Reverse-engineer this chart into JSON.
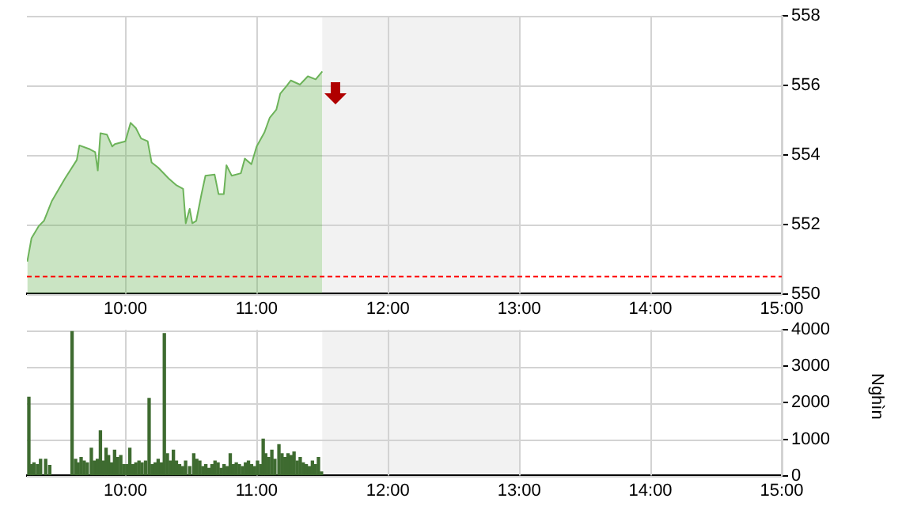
{
  "chart_data": [
    {
      "type": "area",
      "color": "#6db35a",
      "x": [
        9.253,
        9.285,
        9.34,
        9.38,
        9.44,
        9.54,
        9.63,
        9.65,
        9.73,
        9.77,
        9.79,
        9.81,
        9.86,
        9.9,
        9.92,
        10.0,
        10.04,
        10.08,
        10.12,
        10.17,
        10.2,
        10.25,
        10.33,
        10.39,
        10.44,
        10.46,
        10.49,
        10.51,
        10.54,
        10.58,
        10.61,
        10.68,
        10.71,
        10.75,
        10.77,
        10.81,
        10.88,
        10.91,
        10.96,
        11.0,
        11.06,
        11.1,
        11.15,
        11.18,
        11.23,
        11.26,
        11.33,
        11.39,
        11.45,
        11.5
      ],
      "values": [
        550.93,
        551.6,
        551.95,
        552.1,
        552.67,
        553.32,
        553.85,
        554.27,
        554.16,
        554.08,
        553.55,
        554.62,
        554.58,
        554.24,
        554.31,
        554.39,
        554.92,
        554.77,
        554.47,
        554.39,
        553.78,
        553.63,
        553.32,
        553.12,
        553.02,
        552.03,
        552.45,
        552.03,
        552.1,
        552.87,
        553.4,
        553.43,
        552.87,
        552.87,
        553.7,
        553.4,
        553.47,
        553.89,
        553.73,
        554.24,
        554.65,
        555.07,
        555.3,
        555.76,
        555.99,
        556.14,
        556.02,
        556.26,
        556.17,
        556.4
      ],
      "xlim": [
        9.25,
        15
      ],
      "xticks": [
        {
          "value": 10,
          "label": "10:00"
        },
        {
          "value": 11,
          "label": "11:00"
        },
        {
          "value": 12,
          "label": "12:00"
        },
        {
          "value": 13,
          "label": "13:00"
        },
        {
          "value": 14,
          "label": "14:00"
        },
        {
          "value": 15,
          "label": "15:00"
        }
      ],
      "ylim": [
        550,
        558
      ],
      "yticks": [
        550,
        552,
        554,
        556,
        558
      ],
      "grid": true,
      "ref_lines": [
        {
          "axis": "y",
          "value": 550.5,
          "color": "#ff0000",
          "line_style": "dashed"
        }
      ],
      "bands": [
        {
          "axis": "x",
          "from": 11.5,
          "to": 13,
          "color": "#f2f2f2"
        }
      ]
    },
    {
      "type": "bar",
      "color": "#3e6b30",
      "ylabel": "Nghìn",
      "x": [
        9.265,
        9.285,
        9.304,
        9.331,
        9.354,
        9.393,
        9.424,
        9.594,
        9.621,
        9.64,
        9.663,
        9.686,
        9.71,
        9.741,
        9.764,
        9.787,
        9.81,
        9.833,
        9.853,
        9.872,
        9.895,
        9.918,
        9.941,
        9.965,
        9.988,
        10.011,
        10.034,
        10.057,
        10.08,
        10.104,
        10.127,
        10.154,
        10.181,
        10.204,
        10.227,
        10.25,
        10.274,
        10.297,
        10.32,
        10.343,
        10.366,
        10.389,
        10.413,
        10.436,
        10.459,
        10.49,
        10.521,
        10.544,
        10.567,
        10.59,
        10.613,
        10.637,
        10.66,
        10.683,
        10.706,
        10.729,
        10.752,
        10.776,
        10.799,
        10.822,
        10.845,
        10.868,
        10.892,
        10.915,
        10.938,
        10.961,
        10.984,
        11.007,
        11.031,
        11.05,
        11.069,
        11.092,
        11.116,
        11.139,
        11.17,
        11.193,
        11.216,
        11.239,
        11.262,
        11.285,
        11.309,
        11.332,
        11.355,
        11.378,
        11.401,
        11.425,
        11.448,
        11.471,
        11.494
      ],
      "values": [
        2150,
        300,
        350,
        300,
        450,
        450,
        280,
        3950,
        450,
        350,
        500,
        400,
        350,
        750,
        400,
        450,
        1230,
        400,
        750,
        550,
        350,
        700,
        500,
        550,
        300,
        300,
        750,
        300,
        350,
        400,
        350,
        400,
        2120,
        300,
        350,
        450,
        350,
        3900,
        600,
        400,
        700,
        400,
        300,
        250,
        400,
        250,
        600,
        450,
        400,
        250,
        300,
        200,
        300,
        400,
        350,
        200,
        300,
        250,
        600,
        300,
        350,
        300,
        250,
        350,
        400,
        300,
        250,
        400,
        300,
        1000,
        600,
        500,
        700,
        450,
        850,
        600,
        500,
        600,
        550,
        650,
        400,
        500,
        350,
        300,
        250,
        400,
        300,
        500,
        100
      ],
      "xlim": [
        9.25,
        15
      ],
      "xticks": [
        {
          "value": 10,
          "label": "10:00"
        },
        {
          "value": 11,
          "label": "11:00"
        },
        {
          "value": 12,
          "label": "12:00"
        },
        {
          "value": 13,
          "label": "13:00"
        },
        {
          "value": 14,
          "label": "14:00"
        },
        {
          "value": 15,
          "label": "15:00"
        }
      ],
      "ylim": [
        0,
        4000
      ],
      "yticks": [
        0,
        1000,
        2000,
        3000,
        4000
      ],
      "grid": true,
      "bands": [
        {
          "axis": "x",
          "from": 11.5,
          "to": 13,
          "color": "#f2f2f2"
        }
      ]
    }
  ]
}
